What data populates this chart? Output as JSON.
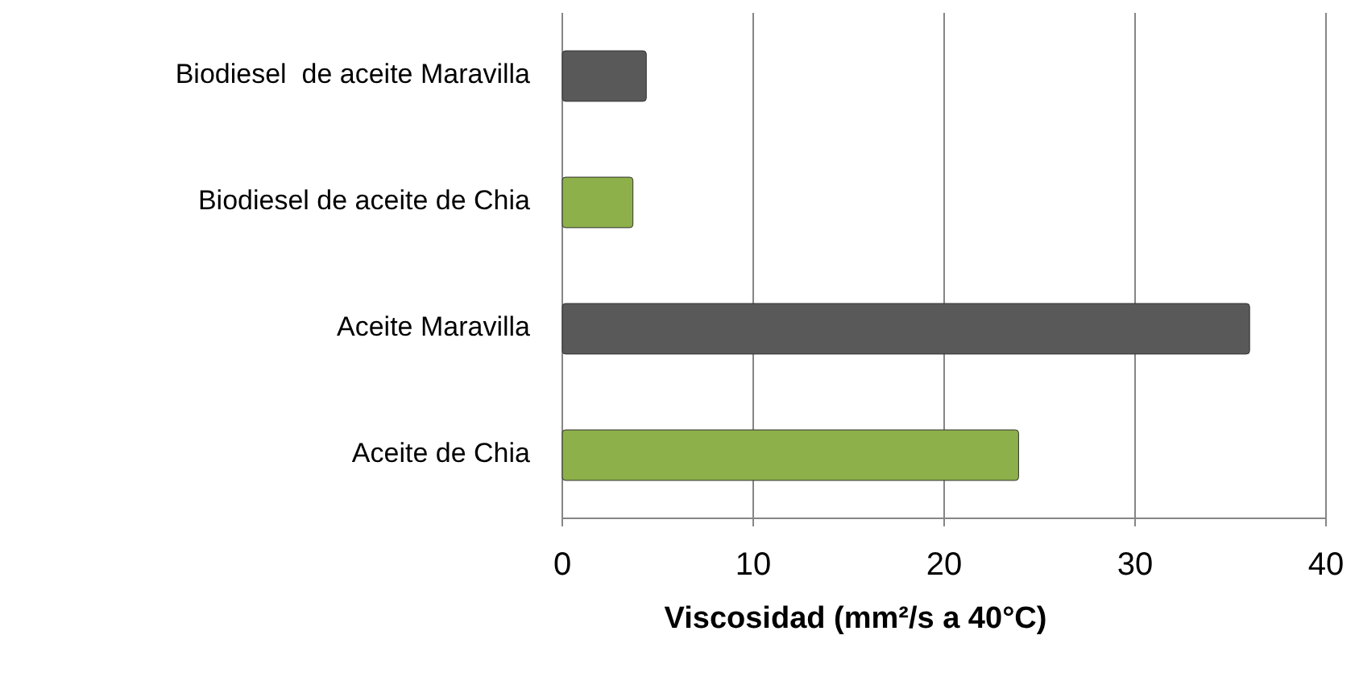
{
  "chart_data": {
    "type": "bar",
    "orientation": "horizontal",
    "xlabel": "Viscosidad (mm²/s a 40°C)",
    "categories": [
      "Biodiesel  de aceite Maravilla",
      "Biodiesel de aceite de Chia",
      "Aceite Maravilla",
      "Aceite de Chia"
    ],
    "values": [
      4.4,
      3.7,
      36,
      23.9
    ],
    "colors": [
      "#595959",
      "#8db04a",
      "#595959",
      "#8db04a"
    ],
    "xlim": [
      0,
      40
    ],
    "xticks": [
      0,
      10,
      20,
      30,
      40
    ],
    "grid": "x"
  }
}
